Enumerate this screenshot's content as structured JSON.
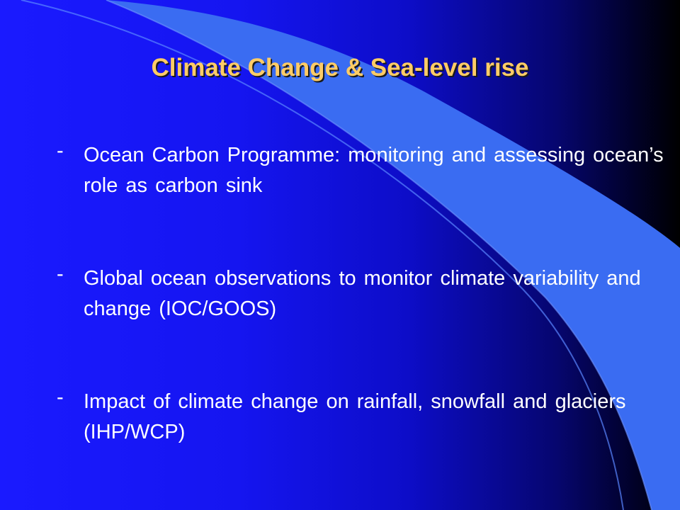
{
  "slide": {
    "title": "Climate Change & Sea-level rise",
    "bullet_marker": "-",
    "bullets": [
      {
        "text": "Ocean Carbon Programme: monitoring and assessing ocean’s role as  carbon sink"
      },
      {
        "text": "Global ocean observations to monitor climate variability and change (IOC/GOOS)"
      },
      {
        "text": "Impact of climate change on rainfall, snowfall and glaciers (IHP/WCP)"
      }
    ]
  },
  "colors": {
    "background_left": "#1a1aff",
    "background_right": "#000000",
    "swoosh": "#3a6cf2",
    "title": "#ffcc66",
    "body_text": "#ffffff"
  }
}
